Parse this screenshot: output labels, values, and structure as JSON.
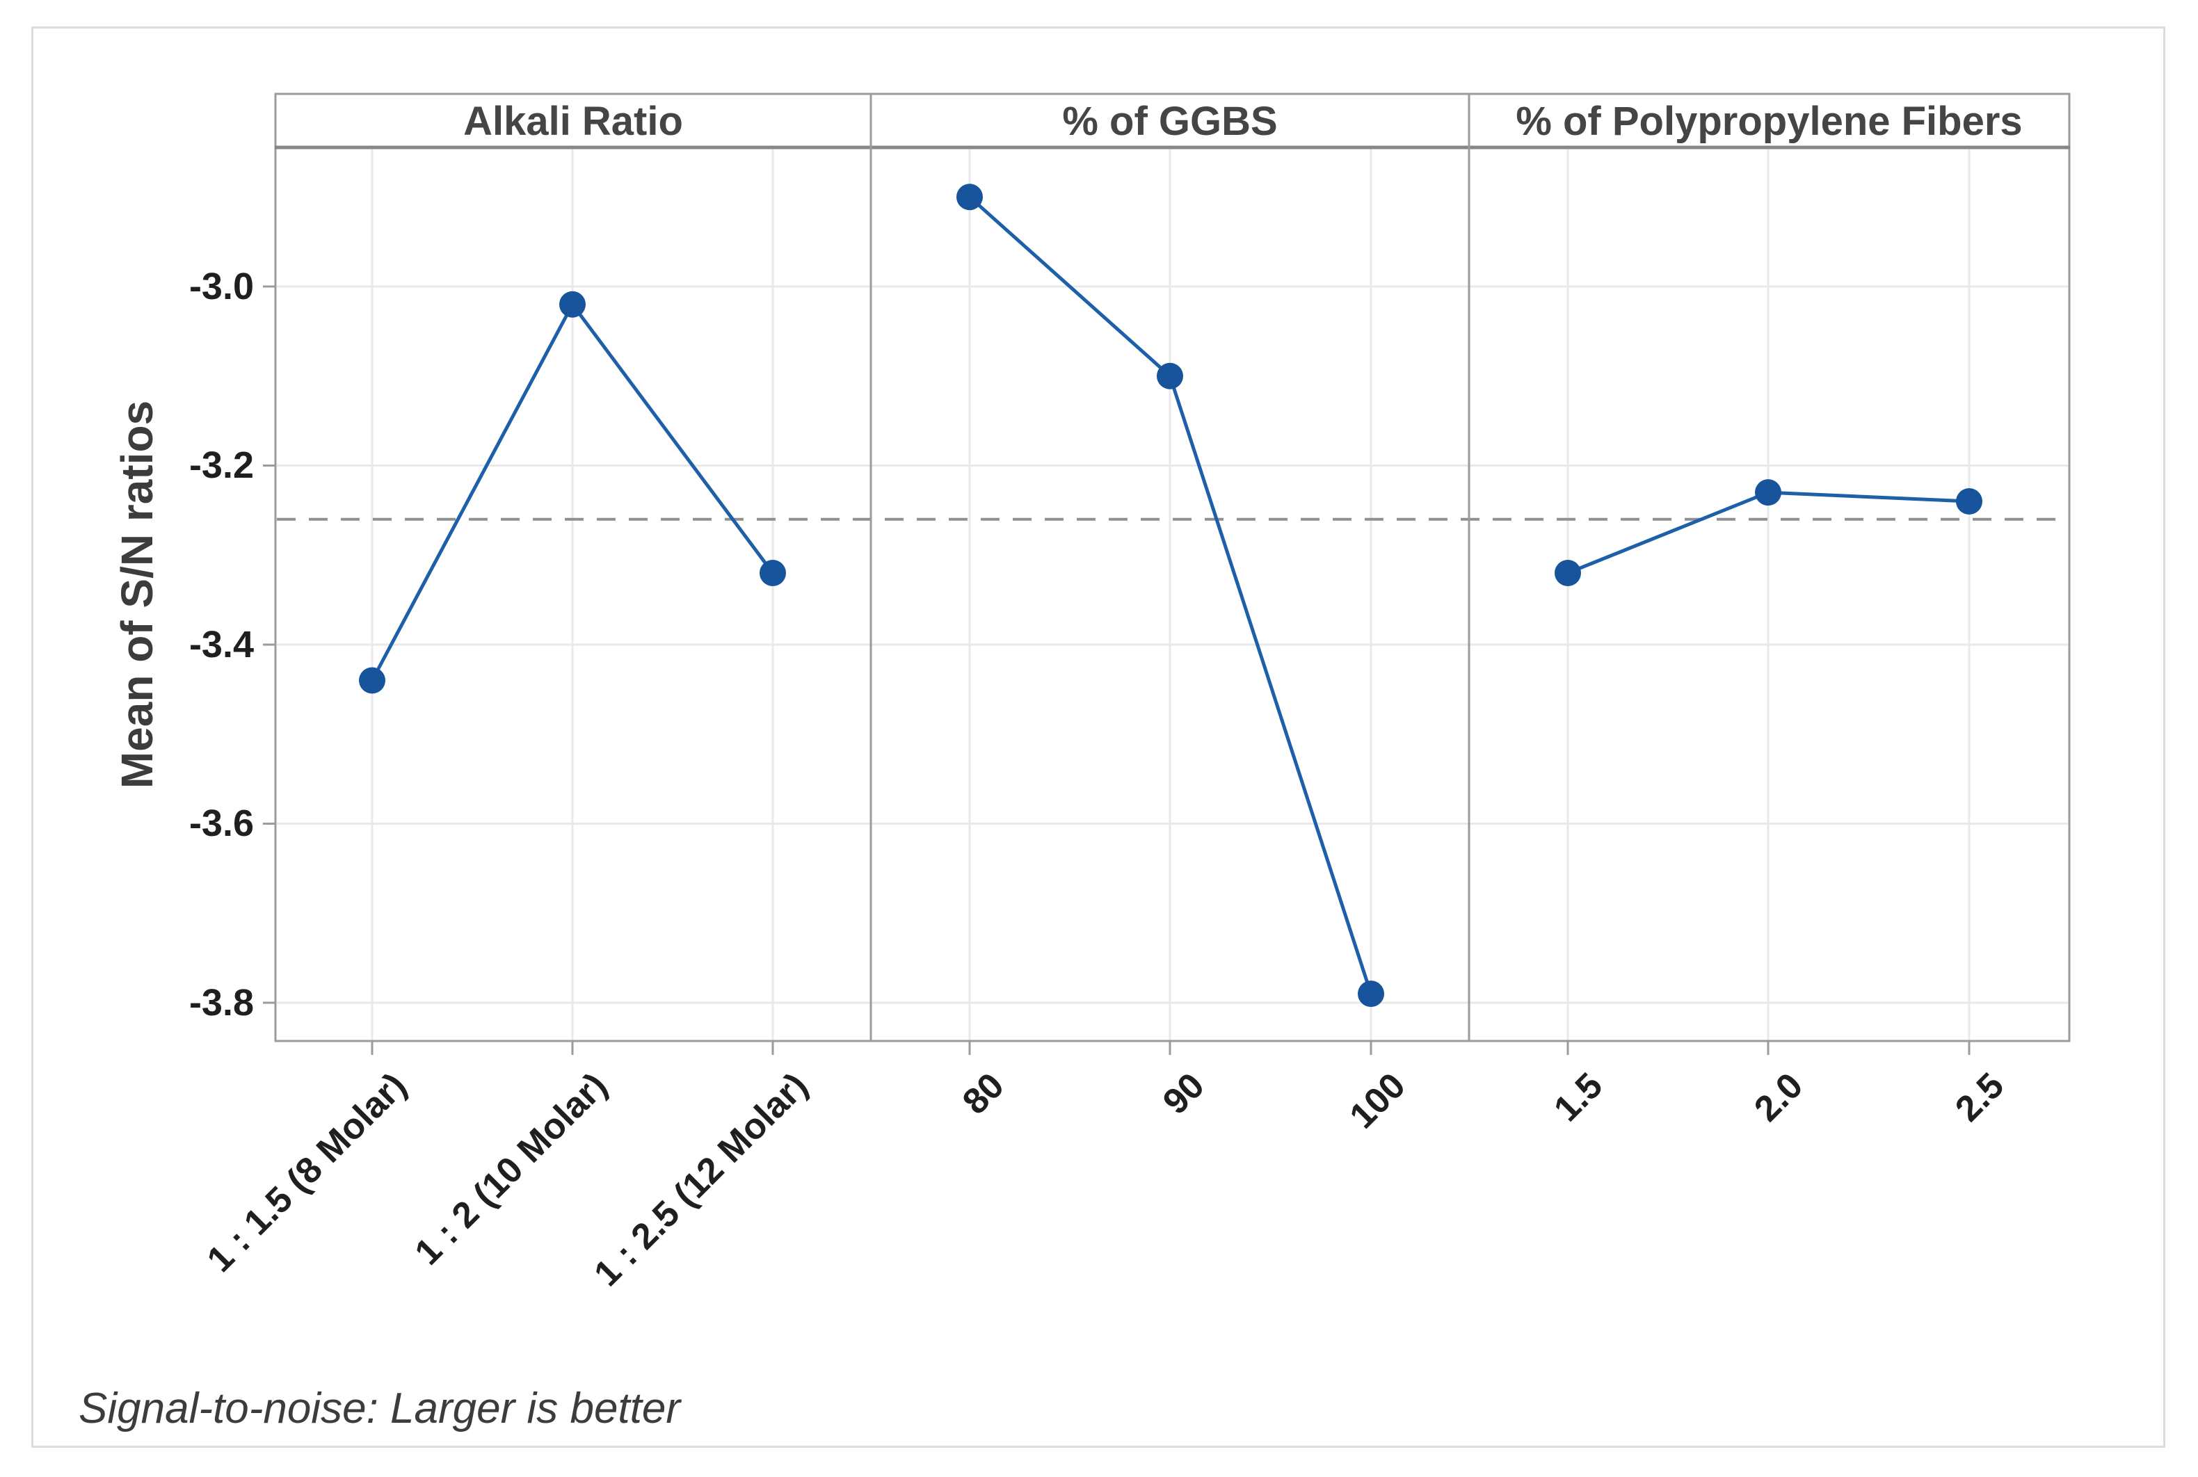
{
  "chart_data": {
    "type": "line",
    "subtype": "main-effects-plot",
    "title": "",
    "legend": "none",
    "marker": "circle",
    "y_axis": {
      "label": "Mean of S/N ratios",
      "ticks": [
        -3.0,
        -3.2,
        -3.4,
        -3.6,
        -3.8
      ],
      "tick_labels": [
        "-3.0",
        "-3.2",
        "-3.4",
        "-3.6",
        "-3.8"
      ],
      "ylim": [
        -3.843,
        -2.845
      ],
      "grid": true
    },
    "reference_line": {
      "value": -3.26,
      "style": "dashed"
    },
    "panels": [
      {
        "title": "Alkali Ratio",
        "categories": [
          "1 : 1.5 (8 Molar)",
          "1 : 2 (10 Molar)",
          "1 : 2.5 (12 Molar)"
        ],
        "values": [
          -3.44,
          -3.02,
          -3.32
        ]
      },
      {
        "title": "% of GGBS",
        "categories": [
          "80",
          "90",
          "100"
        ],
        "values": [
          -2.9,
          -3.1,
          -3.79
        ]
      },
      {
        "title": "% of Polypropylene Fibers",
        "categories": [
          "1.5",
          "2.0",
          "2.5"
        ],
        "values": [
          -3.32,
          -3.23,
          -3.24
        ]
      }
    ],
    "footnote": "Signal-to-noise: Larger is better",
    "colors": {
      "series": "#1d5fa8",
      "marker": "#17549c",
      "reference": "#909090",
      "grid": "#e9e9e9",
      "axis": "#9b9b9b",
      "header_rule": "#878787",
      "figure_border": "#dcdcdc",
      "tick_text": "#1f1f1f",
      "label_text": "#3c3c3c"
    }
  }
}
